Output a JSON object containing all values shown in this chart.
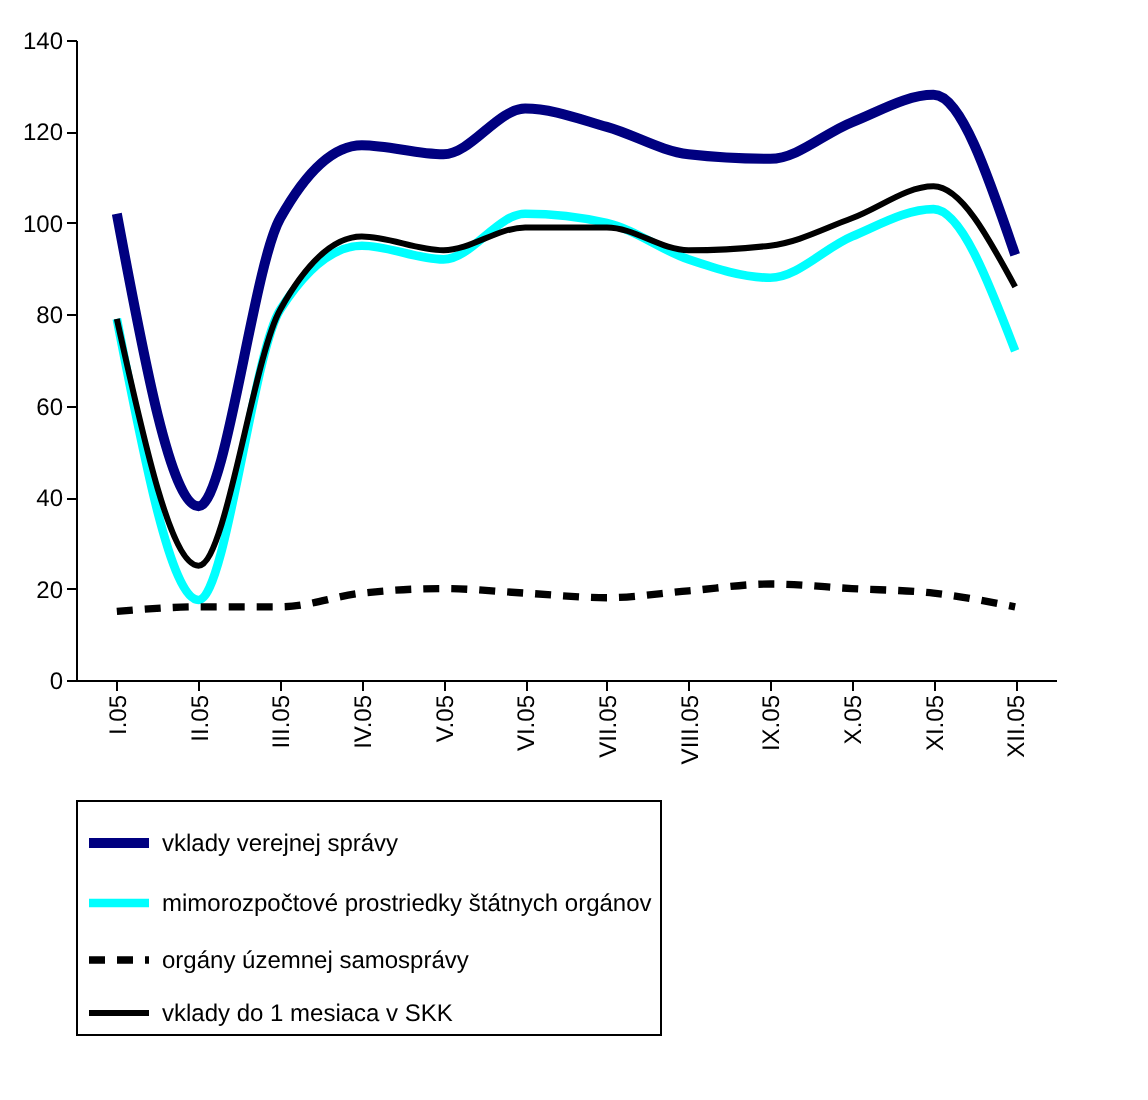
{
  "chart_data": {
    "type": "line",
    "categories": [
      "I.05",
      "II.05",
      "III.05",
      "IV.05",
      "V.05",
      "VI.05",
      "VII.05",
      "VIII.05",
      "IX.05",
      "X.05",
      "XI.05",
      "XII.05"
    ],
    "ylim": [
      0,
      140
    ],
    "yticks": [
      0,
      20,
      40,
      60,
      80,
      100,
      120,
      140
    ],
    "grid": false,
    "legend": "bottom",
    "marker": "none",
    "series": [
      {
        "name": "vklady verejnej správy",
        "color": "#000080",
        "line_style": "solid",
        "values": [
          102,
          38,
          101,
          117,
          115,
          125,
          121,
          115,
          114,
          122,
          128,
          93
        ]
      },
      {
        "name": "mimorozpočtové prostriedky štátnych orgánov",
        "color": "#00ffff",
        "line_style": "solid",
        "values": [
          79,
          17.5,
          81,
          95,
          92,
          102,
          100,
          92,
          88,
          97,
          103,
          72
        ]
      },
      {
        "name": "orgány územnej samosprávy",
        "color": "#000000",
        "line_style": "dashed",
        "values": [
          15,
          16,
          16,
          19,
          20,
          19,
          18,
          19.5,
          21,
          20,
          19,
          16
        ]
      },
      {
        "name": "vklady do 1 mesiaca v SKK",
        "color": "#000000",
        "line_style": "solid",
        "values": [
          79,
          25,
          81,
          97,
          94,
          99,
          99,
          94,
          95,
          101,
          108,
          86
        ]
      }
    ]
  }
}
